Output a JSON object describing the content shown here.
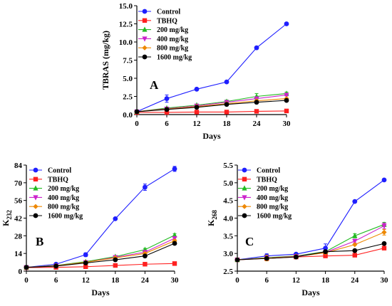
{
  "chart_data": [
    {
      "type": "line",
      "panel_label": "A",
      "xlabel": "Days",
      "ylabel": "TBRAS (mg/kg)",
      "x": [
        0,
        6,
        12,
        18,
        24,
        30
      ],
      "xticks": [
        "0",
        "6",
        "12",
        "18",
        "24",
        "30"
      ],
      "xlim": [
        0,
        30
      ],
      "ylim": [
        0,
        15
      ],
      "yticks": [
        "0.0",
        "2.5",
        "5.0",
        "7.5",
        "10.0",
        "12.5",
        "15.0"
      ],
      "grid": false,
      "legend_position": "top-left",
      "series": [
        {
          "name": "Control",
          "color": "#1f1fff",
          "marker": "circle",
          "values": [
            0.4,
            2.2,
            3.5,
            4.5,
            9.2,
            12.5
          ],
          "errors": [
            0,
            0.5,
            0.15,
            0.15,
            0.15,
            0.1
          ]
        },
        {
          "name": "TBHQ",
          "color": "#ff2020",
          "marker": "square",
          "values": [
            0.3,
            0.3,
            0.35,
            0.35,
            0.45,
            0.5
          ],
          "errors": [
            0,
            0,
            0,
            0,
            0,
            0
          ]
        },
        {
          "name": "200 mg/kg",
          "color": "#22bb22",
          "marker": "triangle-up",
          "values": [
            0.4,
            0.9,
            1.3,
            1.8,
            2.5,
            2.9
          ],
          "errors": [
            0,
            0.1,
            0.15,
            0.2,
            0.4,
            0.2
          ]
        },
        {
          "name": "400 mg/kg",
          "color": "#cc22cc",
          "marker": "triangle-down",
          "values": [
            0.4,
            0.8,
            1.2,
            1.7,
            2.2,
            2.7
          ],
          "errors": [
            0,
            0,
            0,
            0,
            0.2,
            0.15
          ]
        },
        {
          "name": "800 mg/kg",
          "color": "#ee8800",
          "marker": "diamond",
          "values": [
            0.4,
            0.75,
            1.1,
            1.5,
            1.9,
            2.2
          ],
          "errors": [
            0,
            0,
            0,
            0,
            0.1,
            0.1
          ]
        },
        {
          "name": "1600 mg/kg",
          "color": "#000000",
          "marker": "circle",
          "values": [
            0.4,
            0.7,
            1.0,
            1.4,
            1.7,
            1.95
          ],
          "errors": [
            0,
            0,
            0,
            0,
            0.1,
            0.1
          ]
        }
      ]
    },
    {
      "type": "line",
      "panel_label": "B",
      "xlabel": "Days",
      "ylabel": "K",
      "ylabel_sub": "232",
      "x": [
        0,
        6,
        12,
        18,
        24,
        30
      ],
      "xticks": [
        "0",
        "6",
        "12",
        "18",
        "24",
        "30"
      ],
      "xlim": [
        0,
        30
      ],
      "ylim": [
        0,
        84
      ],
      "yticks": [
        "0",
        "14",
        "28",
        "42",
        "56",
        "70",
        "84"
      ],
      "grid": false,
      "legend_position": "top-left",
      "series": [
        {
          "name": "Control",
          "color": "#1f1fff",
          "marker": "circle",
          "values": [
            3,
            5.5,
            13,
            41.5,
            66.5,
            81
          ],
          "errors": [
            0,
            0.5,
            1.5,
            0.8,
            2.5,
            2
          ]
        },
        {
          "name": "TBHQ",
          "color": "#ff2020",
          "marker": "square",
          "values": [
            2.8,
            3,
            3.5,
            4.5,
            5.5,
            6
          ],
          "errors": [
            0,
            0,
            0,
            0,
            0,
            0
          ]
        },
        {
          "name": "200 mg/kg",
          "color": "#22bb22",
          "marker": "triangle-up",
          "values": [
            3,
            4.5,
            7.5,
            11.5,
            17,
            28.5
          ],
          "errors": [
            0,
            0,
            0.5,
            0.8,
            1,
            1.2
          ]
        },
        {
          "name": "400 mg/kg",
          "color": "#cc22cc",
          "marker": "triangle-down",
          "values": [
            3,
            4.3,
            7,
            11,
            15,
            26
          ],
          "errors": [
            0,
            0,
            0,
            0,
            0,
            1
          ]
        },
        {
          "name": "800 mg/kg",
          "color": "#ee8800",
          "marker": "diamond",
          "values": [
            3,
            4.2,
            7,
            10.5,
            14,
            24
          ],
          "errors": [
            0,
            0,
            0,
            0,
            0,
            1
          ]
        },
        {
          "name": "1600 mg/kg",
          "color": "#000000",
          "marker": "circle",
          "values": [
            3,
            4,
            6.5,
            9,
            12,
            22
          ],
          "errors": [
            0,
            0,
            0,
            0,
            0,
            1
          ]
        }
      ]
    },
    {
      "type": "line",
      "panel_label": "C",
      "xlabel": "Days",
      "ylabel": "K",
      "ylabel_sub": "268",
      "x": [
        0,
        6,
        12,
        18,
        24,
        30
      ],
      "xticks": [
        "0",
        "6",
        "12",
        "18",
        "24",
        "30"
      ],
      "xlim": [
        0,
        30
      ],
      "ylim": [
        2.5,
        5.5
      ],
      "yticks": [
        "2.5",
        "3.0",
        "3.5",
        "4.0",
        "4.5",
        "5.0",
        "5.5"
      ],
      "grid": false,
      "legend_position": "top-left",
      "series": [
        {
          "name": "Control",
          "color": "#1f1fff",
          "marker": "circle",
          "values": [
            2.82,
            2.93,
            2.98,
            3.15,
            4.47,
            5.08
          ],
          "errors": [
            0,
            0.06,
            0.03,
            0.12,
            0,
            0
          ]
        },
        {
          "name": "TBHQ",
          "color": "#ff2020",
          "marker": "square",
          "values": [
            2.82,
            2.86,
            2.9,
            2.93,
            2.95,
            3.15
          ],
          "errors": [
            0,
            0,
            0,
            0,
            0,
            0.04
          ]
        },
        {
          "name": "200 mg/kg",
          "color": "#22bb22",
          "marker": "triangle-up",
          "values": [
            2.82,
            2.88,
            2.93,
            3.05,
            3.5,
            3.82
          ],
          "errors": [
            0,
            0,
            0,
            0,
            0.06,
            0.06
          ]
        },
        {
          "name": "400 mg/kg",
          "color": "#cc22cc",
          "marker": "triangle-down",
          "values": [
            2.82,
            2.87,
            2.92,
            3.03,
            3.35,
            3.78
          ],
          "errors": [
            0,
            0,
            0,
            0,
            0.05,
            0.08
          ]
        },
        {
          "name": "800 mg/kg",
          "color": "#ee8800",
          "marker": "diamond",
          "values": [
            2.82,
            2.87,
            2.91,
            3.02,
            3.25,
            3.6
          ],
          "errors": [
            0,
            0.08,
            0,
            0,
            0,
            0.08
          ]
        },
        {
          "name": "1600 mg/kg",
          "color": "#000000",
          "marker": "circle",
          "values": [
            2.82,
            2.86,
            2.9,
            3.05,
            3.08,
            3.28
          ],
          "errors": [
            0,
            0,
            0,
            0,
            0,
            0
          ]
        }
      ]
    }
  ]
}
